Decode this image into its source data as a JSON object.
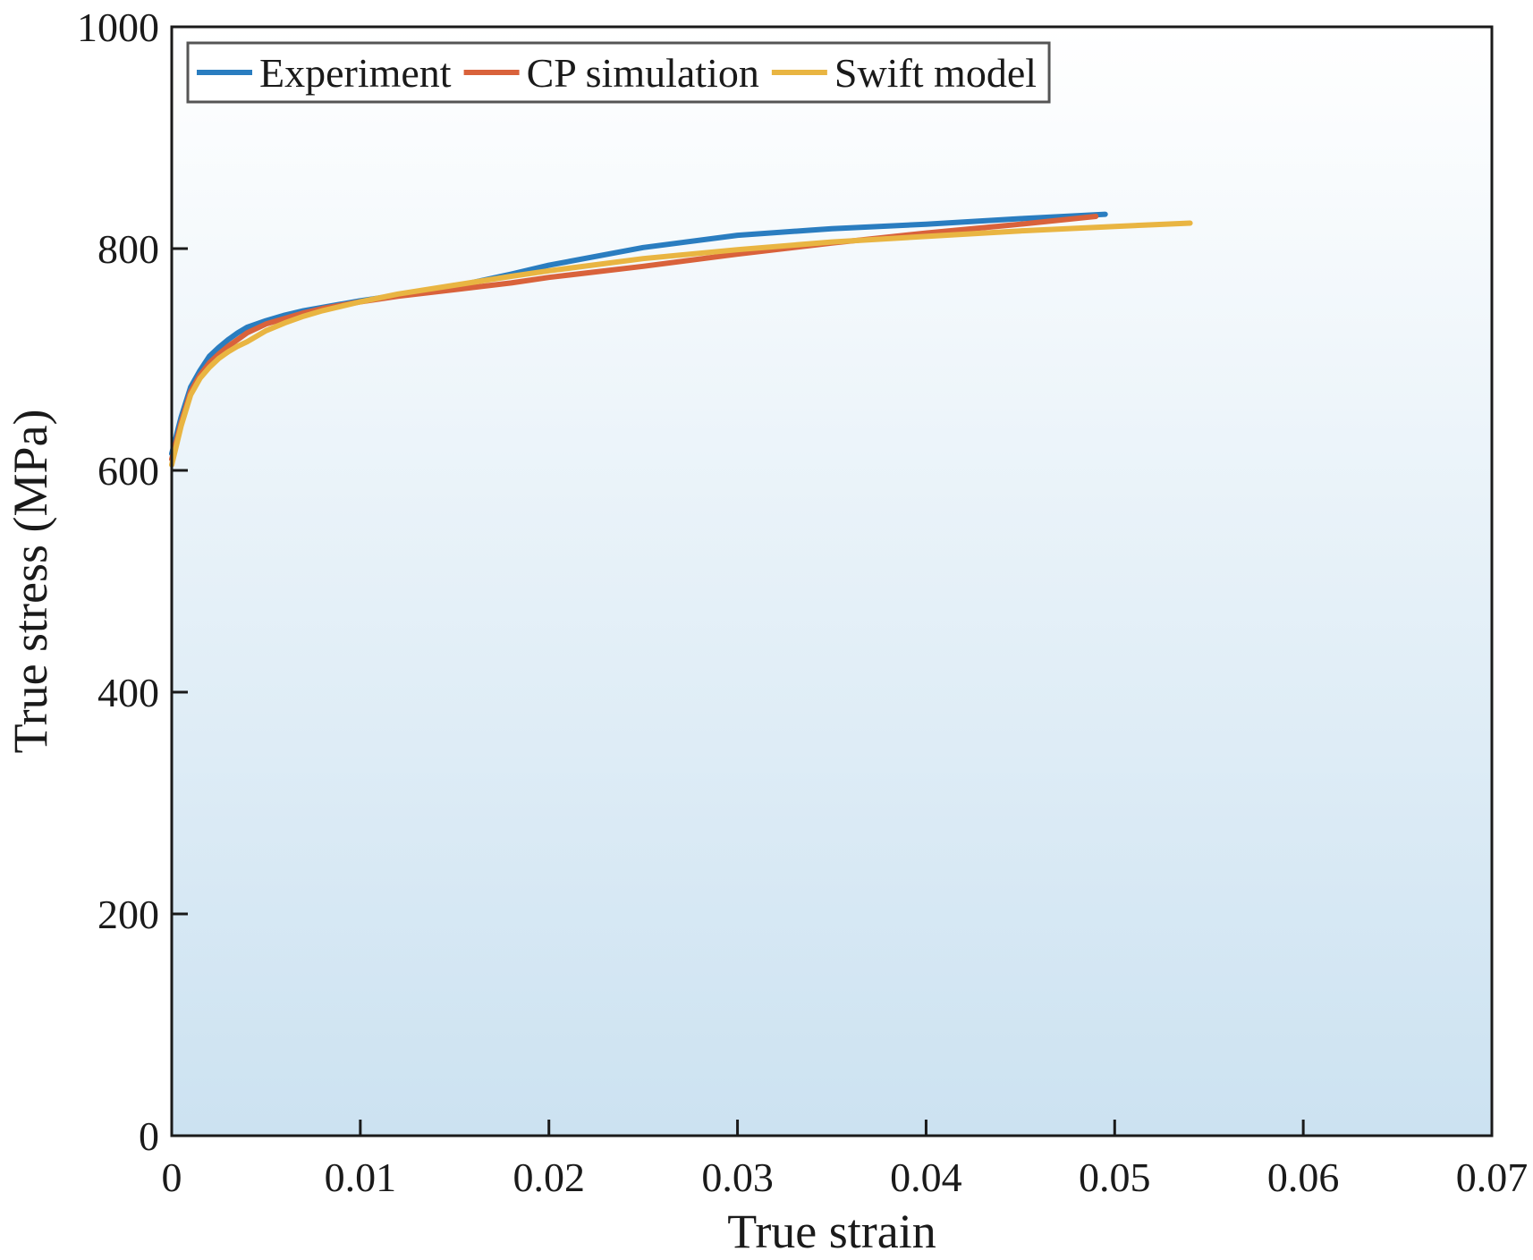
{
  "chart_data": {
    "type": "line",
    "title": "",
    "xlabel": "True strain",
    "ylabel": "True stress (MPa)",
    "xlim": [
      0,
      0.07
    ],
    "ylim": [
      0,
      1000
    ],
    "xticks": [
      0,
      0.01,
      0.02,
      0.03,
      0.04,
      0.05,
      0.06,
      0.07
    ],
    "xtick_labels": [
      "0",
      "0.01",
      "0.02",
      "0.03",
      "0.04",
      "0.05",
      "0.06",
      "0.07"
    ],
    "yticks": [
      0,
      200,
      400,
      600,
      800,
      1000
    ],
    "ytick_labels": [
      "0",
      "200",
      "400",
      "600",
      "800",
      "1000"
    ],
    "grid": false,
    "legend_position": "top-left",
    "background_gradient": [
      "#ffffff",
      "#cce2f1"
    ],
    "series": [
      {
        "name": "Experiment",
        "color": "#2a7dc0",
        "x": [
          0,
          0.0005,
          0.001,
          0.0015,
          0.002,
          0.0025,
          0.003,
          0.0035,
          0.004,
          0.005,
          0.006,
          0.007,
          0.008,
          0.01,
          0.012,
          0.015,
          0.018,
          0.02,
          0.025,
          0.03,
          0.035,
          0.04,
          0.045,
          0.0495
        ],
        "y": [
          615,
          648,
          675,
          690,
          703,
          711,
          718,
          724,
          729,
          735,
          740,
          744,
          747,
          753,
          758,
          766,
          777,
          785,
          801,
          812,
          818,
          822,
          827,
          831
        ]
      },
      {
        "name": "CP simulation",
        "color": "#d9623b",
        "x": [
          0,
          0.0005,
          0.001,
          0.0015,
          0.002,
          0.0025,
          0.003,
          0.0035,
          0.004,
          0.005,
          0.006,
          0.007,
          0.008,
          0.01,
          0.012,
          0.015,
          0.018,
          0.02,
          0.025,
          0.03,
          0.035,
          0.04,
          0.045,
          0.049
        ],
        "y": [
          610,
          643,
          671,
          686,
          697,
          705,
          712,
          718,
          724,
          732,
          737,
          742,
          746,
          752,
          757,
          763,
          769,
          774,
          784,
          795,
          805,
          814,
          822,
          829
        ]
      },
      {
        "name": "Swift model",
        "color": "#e9b542",
        "x": [
          0,
          0.0005,
          0.001,
          0.0015,
          0.002,
          0.0025,
          0.003,
          0.0035,
          0.004,
          0.005,
          0.006,
          0.007,
          0.008,
          0.01,
          0.012,
          0.015,
          0.018,
          0.02,
          0.025,
          0.03,
          0.035,
          0.04,
          0.045,
          0.05,
          0.054
        ],
        "y": [
          605,
          640,
          668,
          683,
          693,
          701,
          707,
          712,
          716,
          726,
          733,
          739,
          744,
          752,
          759,
          767,
          775,
          780,
          791,
          799,
          806,
          811,
          816,
          820,
          823
        ]
      }
    ]
  }
}
